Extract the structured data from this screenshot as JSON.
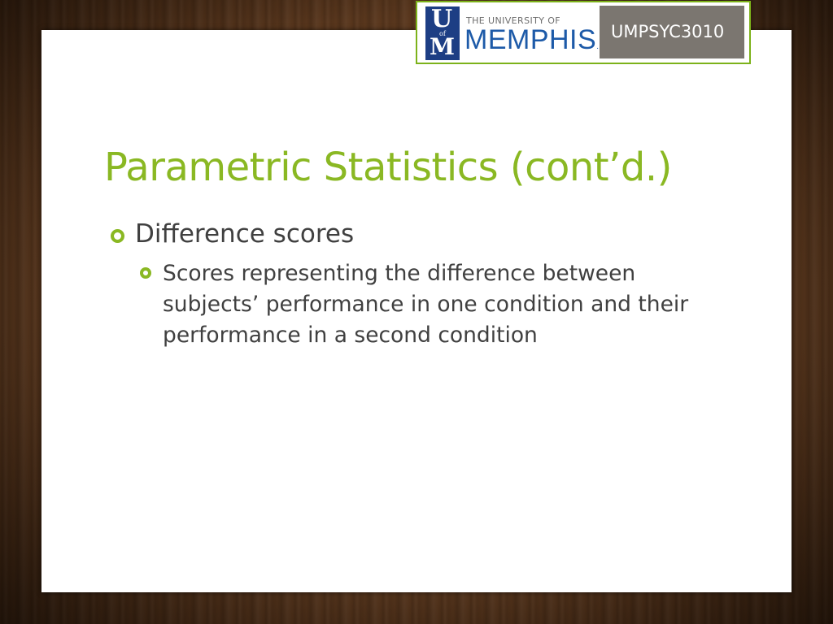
{
  "logo": {
    "u": "U",
    "of": "of",
    "m": "M",
    "university_line": "THE UNIVERSITY OF",
    "memphis_line": "MEMPHIS",
    "memphis_dot": ".",
    "course_code": "UMPSYC3010"
  },
  "slide": {
    "title": "Parametric Statistics (cont’d.)",
    "bullets": [
      {
        "text": "Difference scores",
        "level": 1
      },
      {
        "text": "Scores representing the difference between subjects’ performance in one condition and their performance in a second condition",
        "level": 2
      }
    ]
  },
  "colors": {
    "accent_green": "#8ab823",
    "memphis_blue": "#1d5aa8",
    "text_gray": "#404040",
    "banner_gray": "#7b7670"
  }
}
